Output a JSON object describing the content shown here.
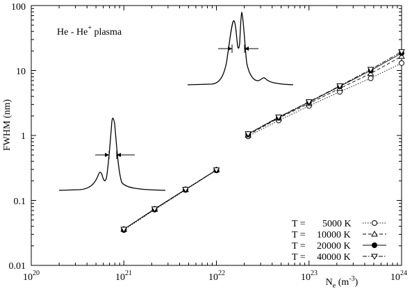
{
  "chart_data": {
    "type": "scatter",
    "annotation": {
      "main": "He - He",
      "sup": "+",
      "tail": " plasma"
    },
    "xlabel": {
      "main": "N",
      "sub": "e",
      "unit": " (m",
      "unit_sup": "-3",
      "unit_end": ")"
    },
    "ylabel": "FWHM  (nm)",
    "xscale": "log",
    "yscale": "log",
    "xlim": [
      1e+20,
      1e+24
    ],
    "ylim": [
      0.01,
      100
    ],
    "x_ticks": [
      {
        "base": "10",
        "exp": "20",
        "value": 1e+20
      },
      {
        "base": "10",
        "exp": "21",
        "value": 1e+21
      },
      {
        "base": "10",
        "exp": "22",
        "value": 1e+22
      },
      {
        "base": "10",
        "exp": "23",
        "value": 1e+23
      },
      {
        "base": "10",
        "exp": "24",
        "value": 1e+24
      }
    ],
    "y_ticks": [
      {
        "label": "0.01",
        "value": 0.01
      },
      {
        "label": "0.1",
        "value": 0.1
      },
      {
        "label": "1",
        "value": 1
      },
      {
        "label": "10",
        "value": 10
      },
      {
        "label": "100",
        "value": 100
      }
    ],
    "legend": {
      "position": "bottom-right",
      "prefix": "T =",
      "entries": [
        "5000 K",
        "10000 K",
        "20000 K",
        "40000 K"
      ]
    },
    "series": [
      {
        "name": "5000 K",
        "marker": "circle-open",
        "line": "dotted",
        "x": [
          1e+21,
          2.15e+21,
          4.64e+21,
          1e+22,
          2.2e+22,
          4.7e+22,
          1e+23,
          2.15e+23,
          4.64e+23,
          1e+24
        ],
        "y": [
          0.035,
          0.072,
          0.145,
          0.29,
          0.97,
          1.7,
          2.85,
          4.7,
          7.6,
          13.0
        ]
      },
      {
        "name": "10000 K",
        "marker": "triangle-up-open",
        "line": "dashed",
        "x": [
          1e+21,
          2.15e+21,
          4.64e+21,
          1e+22,
          2.2e+22,
          4.7e+22,
          1e+23,
          2.15e+23,
          4.64e+23,
          1e+24
        ],
        "y": [
          0.036,
          0.073,
          0.147,
          0.295,
          1.02,
          1.85,
          3.1,
          5.3,
          9.0,
          16.5
        ]
      },
      {
        "name": "20000 K",
        "marker": "circle-filled",
        "line": "solid",
        "x": [
          1e+21,
          2.15e+21,
          4.64e+21,
          1e+22,
          2.2e+22,
          4.7e+22,
          1e+23,
          2.15e+23,
          4.64e+23,
          1e+24
        ],
        "y": [
          0.036,
          0.074,
          0.148,
          0.295,
          1.05,
          1.9,
          3.25,
          5.7,
          10.0,
          18.5
        ]
      },
      {
        "name": "40000 K",
        "marker": "triangle-down-open",
        "line": "dashdot",
        "x": [
          1e+21,
          2.15e+21,
          4.64e+21,
          1e+22,
          2.2e+22,
          4.7e+22,
          1e+23,
          2.15e+23,
          4.64e+23,
          1e+24
        ],
        "y": [
          0.036,
          0.074,
          0.148,
          0.295,
          1.06,
          1.92,
          3.3,
          5.8,
          10.4,
          19.5
        ]
      }
    ],
    "insets": [
      {
        "name": "low-density-line-profile",
        "shape": "single peak with blue-side shoulder, FWHM arrows"
      },
      {
        "name": "high-density-line-profile",
        "shape": "double peak with red-side shoulder, FWHM arrows"
      }
    ]
  }
}
